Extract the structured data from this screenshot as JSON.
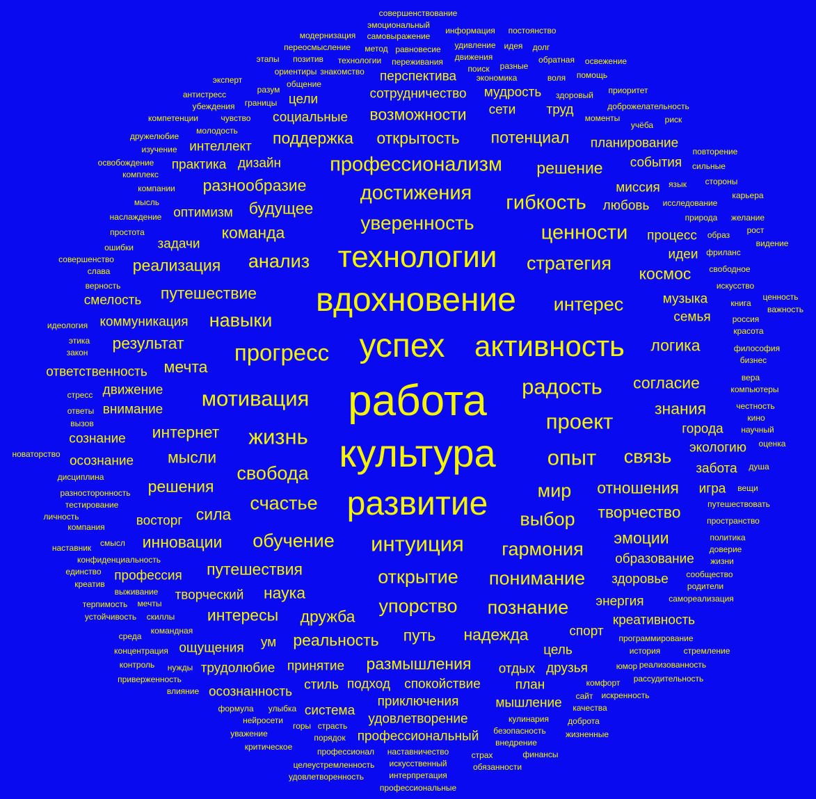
{
  "colors": {
    "background": "#0a0af0",
    "text": "#f5f500"
  },
  "words": [
    "работа",
    "культура",
    "развитие",
    "вдохновение",
    "технологии",
    "успех",
    "активность",
    "профессионализм",
    "прогресс",
    "достижения",
    "уверенность",
    "мотивация",
    "жизнь",
    "радость",
    "проект",
    "опыт",
    "интуиция",
    "гибкость",
    "ценности",
    "стратегия",
    "анализ",
    "навыки",
    "свобода",
    "счастье",
    "обучение",
    "интерес",
    "гармония",
    "выбор",
    "мир",
    "открытие",
    "понимание",
    "упорство",
    "познание",
    "связь",
    "отношения",
    "творчество",
    "поддержка",
    "открытость",
    "потенциал",
    "возможности",
    "будущее",
    "разнообразие",
    "команда",
    "реализация",
    "путешествие",
    "результат",
    "мечта",
    "интернет",
    "мысли",
    "решения",
    "сила",
    "инновации",
    "путешествия",
    "наука",
    "интересы",
    "дружба",
    "путь",
    "надежда",
    "реальность",
    "размышления",
    "космос",
    "логика",
    "согласие",
    "знания",
    "эмоции",
    "решение",
    "сотрудничество",
    "перспектива",
    "социальные",
    "мудрость",
    "сети",
    "труд",
    "цели",
    "планирование",
    "события",
    "миссия",
    "любовь",
    "процесс",
    "идеи",
    "музыка",
    "семья",
    "города",
    "экологию",
    "забота",
    "игра",
    "образование",
    "здоровье",
    "энергия",
    "креативность",
    "спорт",
    "цель",
    "друзья",
    "отдых",
    "план",
    "мышление",
    "профессиональный",
    "удовлетворение",
    "приключения",
    "спокойствие",
    "подход",
    "стиль",
    "принятие",
    "трудолюбие",
    "осознанность",
    "система",
    "ощущения",
    "ум",
    "творческий",
    "профессия",
    "восторг",
    "коммуникация",
    "смелость",
    "ответственность",
    "движение",
    "внимание",
    "сознание",
    "осознание",
    "интеллект",
    "практика",
    "дизайн",
    "оптимизм",
    "задачи",
    "совершенствование",
    "эмоциональный",
    "самовыражение",
    "информация",
    "постоянство",
    "модернизация",
    "переосмысление",
    "метод",
    "равновесие",
    "удивление",
    "идея",
    "долг",
    "этапы",
    "позитив",
    "технологии",
    "переживания",
    "движения",
    "разные",
    "обратная",
    "освежение",
    "ориентиры",
    "знакомство",
    "поиск",
    "эксперт",
    "общение",
    "экономика",
    "воля",
    "помощь",
    "разум",
    "антистресс",
    "здоровый",
    "приоритет",
    "убеждения",
    "границы",
    "доброжелательность",
    "компетенции",
    "чувство",
    "моменты",
    "учёба",
    "риск",
    "молодость",
    "дружелюбие",
    "изучение",
    "повторение",
    "освобождение",
    "сильные",
    "комплекс",
    "язык",
    "стороны",
    "компании",
    "карьера",
    "мысль",
    "исследование",
    "природа",
    "желание",
    "наслаждение",
    "простота",
    "образ",
    "рост",
    "ошибки",
    "видение",
    "фриланс",
    "совершенство",
    "слава",
    "свободное",
    "верность",
    "искусство",
    "ценность",
    "книга",
    "важность",
    "идеология",
    "россия",
    "красота",
    "этика",
    "закон",
    "философия",
    "бизнес",
    "вера",
    "стресс",
    "компьютеры",
    "ответы",
    "честность",
    "вызов",
    "кино",
    "научный",
    "оценка",
    "новаторство",
    "душа",
    "дисциплина",
    "вещи",
    "разносторонность",
    "тестирование",
    "путешествовать",
    "личность",
    "пространство",
    "компания",
    "наставник",
    "смысл",
    "политика",
    "доверие",
    "жизни",
    "конфиденциальность",
    "единство",
    "сообщество",
    "креатив",
    "родители",
    "выживание",
    "терпимость",
    "мечты",
    "самореализация",
    "устойчивость",
    "скиллы",
    "среда",
    "командная",
    "программирование",
    "концентрация",
    "история",
    "стремление",
    "контроль",
    "нужды",
    "юмор",
    "реализованность",
    "приверженность",
    "комфорт",
    "рассудительность",
    "влияние",
    "сайт",
    "искренность",
    "формула",
    "улыбка",
    "качества",
    "нейросети",
    "кулинария",
    "доброта",
    "горы",
    "страсть",
    "уважение",
    "безопасность",
    "порядок",
    "жизненные",
    "внедрение",
    "критическое",
    "профессионал",
    "наставничество",
    "страх",
    "финансы",
    "целеустремленность",
    "искусственный",
    "обязанности",
    "удовлетворенность",
    "интерпретация",
    "профессиональные"
  ]
}
